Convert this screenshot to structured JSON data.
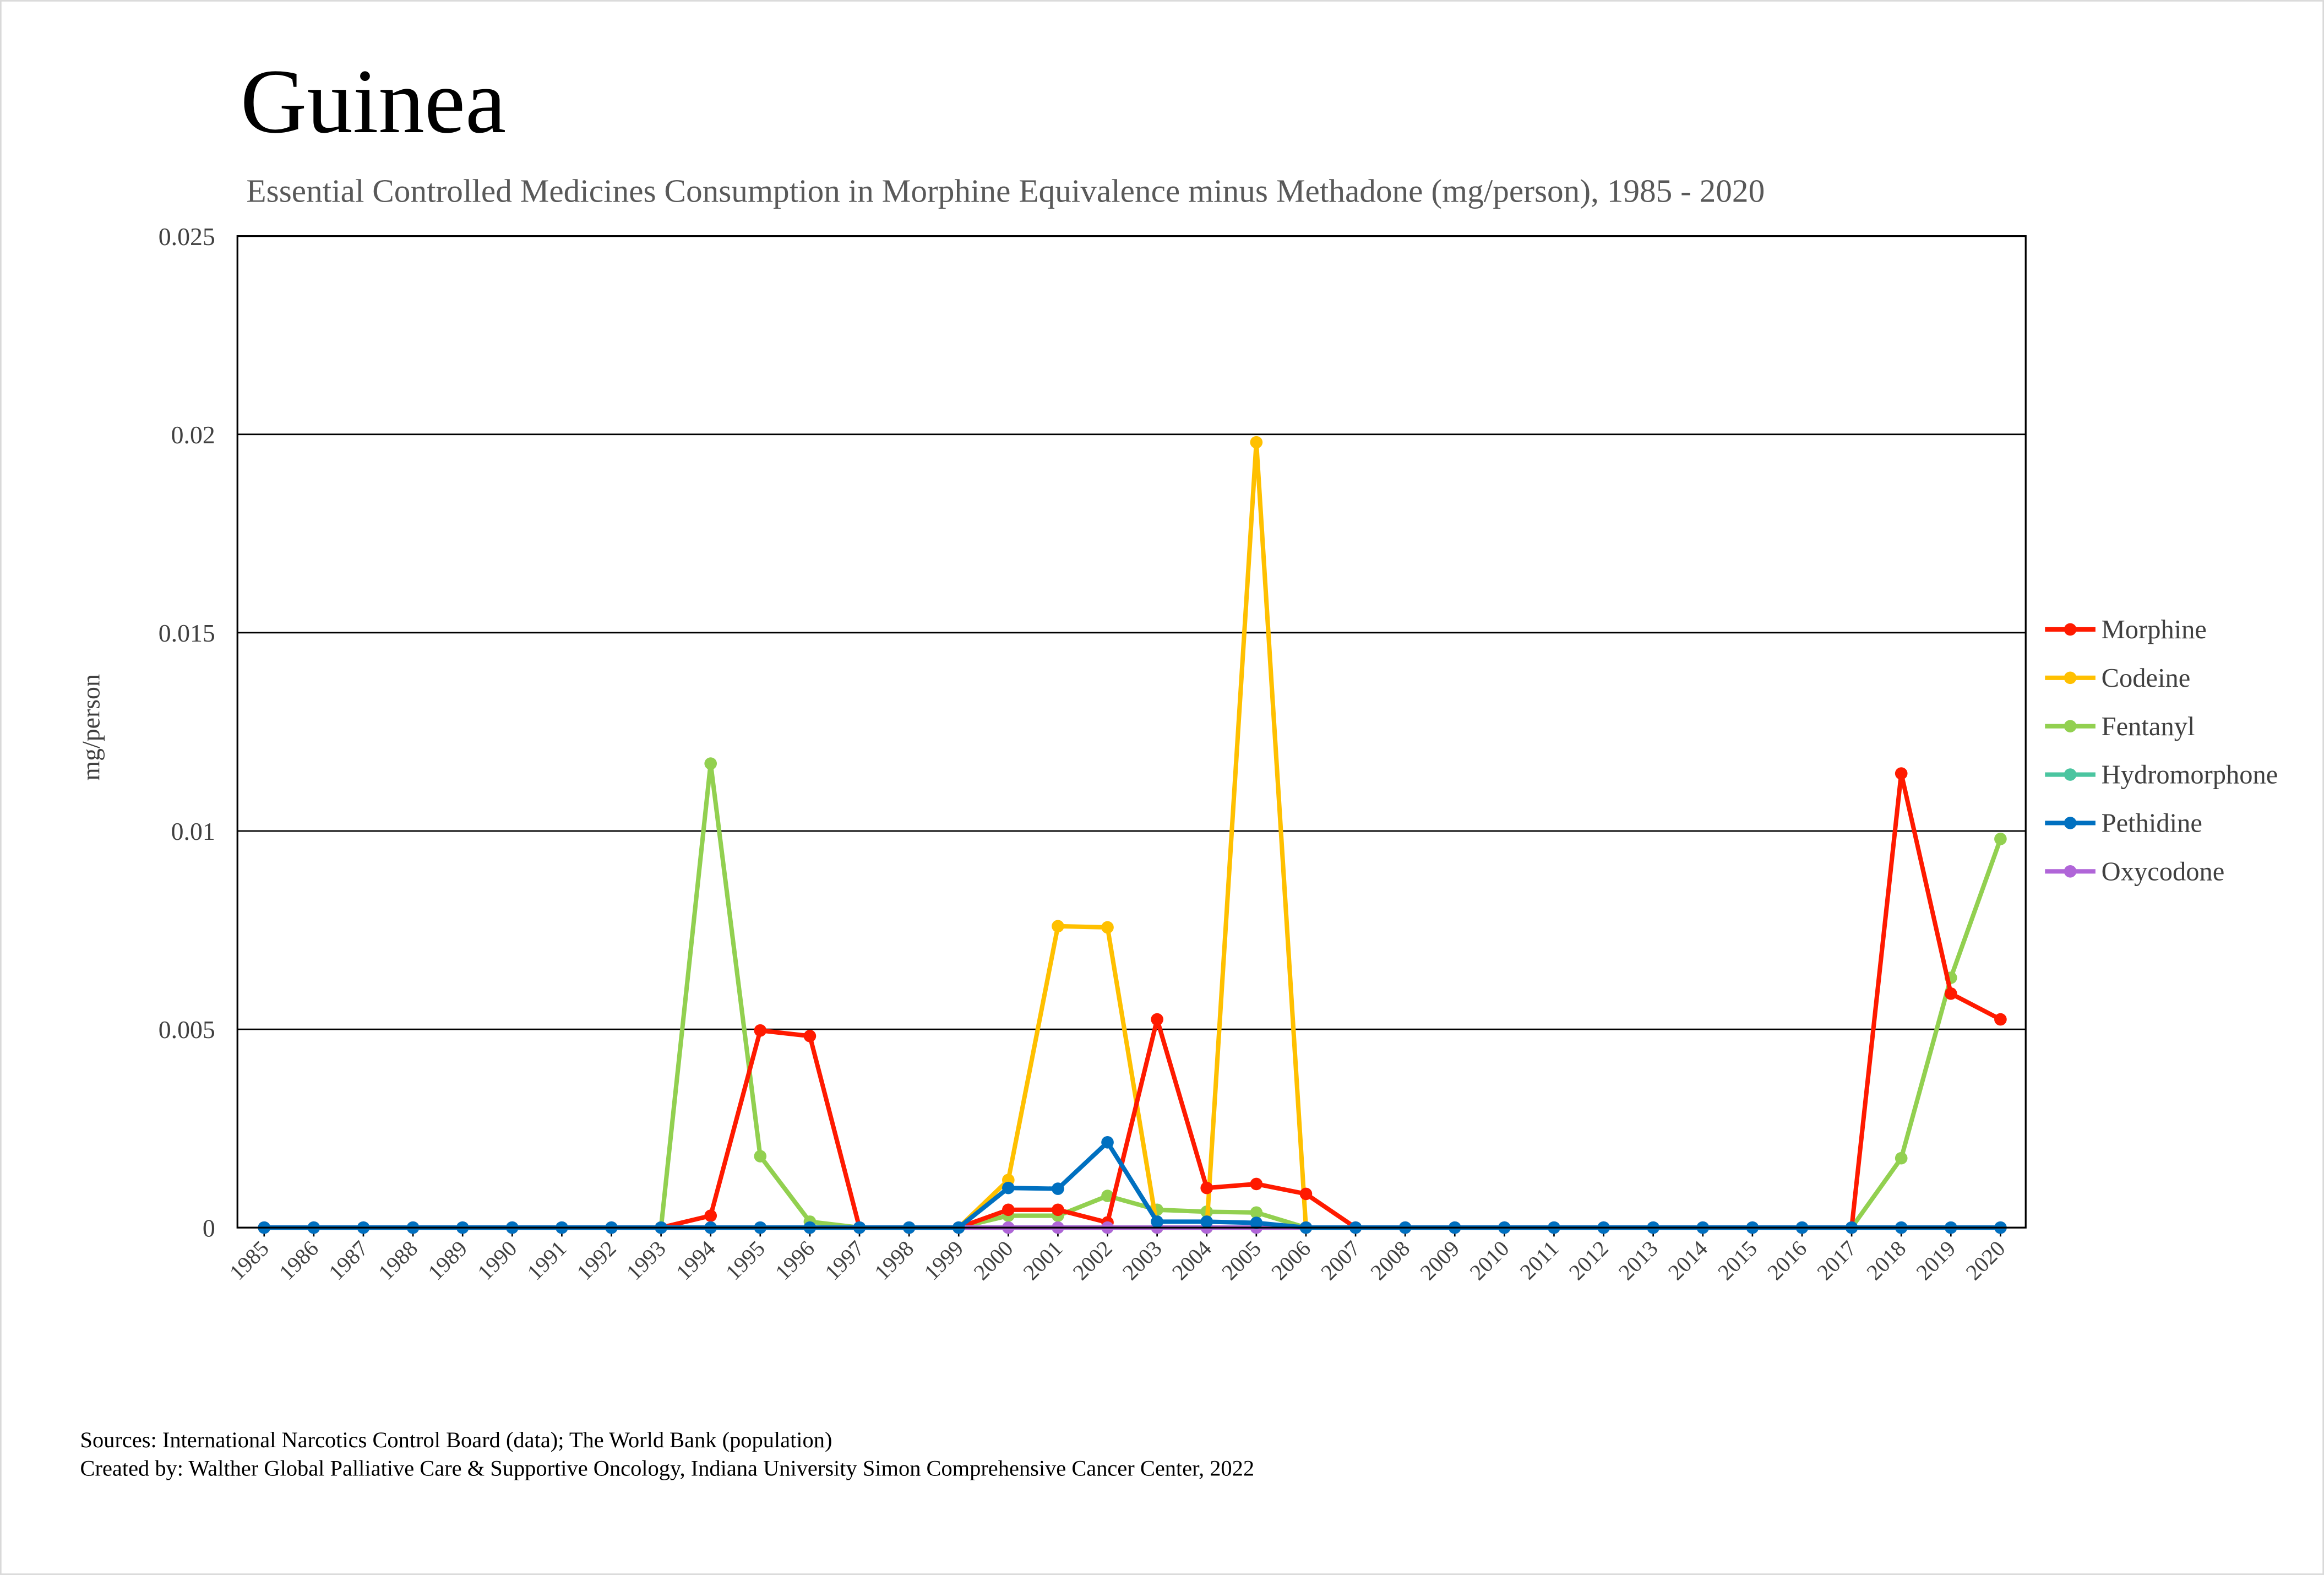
{
  "chart_data": {
    "type": "line",
    "title": "Guinea",
    "subtitle": "Essential Controlled Medicines Consumption in Morphine Equivalence minus Methadone (mg/person), 1985 - 2020",
    "xlabel": "",
    "ylabel": "mg/person",
    "ylim": [
      0,
      0.025
    ],
    "yticks": [
      "0",
      "0.005",
      "0.01",
      "0.015",
      "0.02",
      "0.025"
    ],
    "ytick_values": [
      0,
      0.005,
      0.01,
      0.015,
      0.02,
      0.025
    ],
    "grid": true,
    "legend_position": "right",
    "x": [
      "1985",
      "1986",
      "1987",
      "1988",
      "1989",
      "1990",
      "1991",
      "1992",
      "1993",
      "1994",
      "1995",
      "1996",
      "1997",
      "1998",
      "1999",
      "2000",
      "2001",
      "2002",
      "2003",
      "2004",
      "2005",
      "2006",
      "2007",
      "2008",
      "2009",
      "2010",
      "2011",
      "2012",
      "2013",
      "2014",
      "2015",
      "2016",
      "2017",
      "2018",
      "2019",
      "2020"
    ],
    "series": [
      {
        "name": "Morphine",
        "color": "#FF1A00",
        "values": [
          0,
          0,
          0,
          0,
          0,
          0,
          0,
          0,
          0,
          0.0003,
          0.00497,
          0.00483,
          0,
          0,
          0,
          0.00045,
          0.00045,
          0.00013,
          0.00525,
          0.001,
          0.0011,
          0.00085,
          0,
          0,
          0,
          0,
          0,
          0,
          0,
          0,
          0,
          0,
          0,
          0.01145,
          0.0059,
          0.00525
        ]
      },
      {
        "name": "Codeine",
        "color": "#FFC000",
        "values": [
          0,
          0,
          0,
          0,
          0,
          0,
          0,
          0,
          0,
          0,
          0,
          0,
          0,
          0,
          0,
          0.0012,
          0.0076,
          0.00757,
          0,
          0,
          0.0198,
          0,
          0,
          0,
          0,
          0,
          0,
          0,
          0,
          0,
          0,
          0,
          0,
          0,
          0,
          0
        ]
      },
      {
        "name": "Fentanyl",
        "color": "#92D050",
        "values": [
          0,
          0,
          0,
          0,
          0,
          0,
          0,
          0,
          0,
          0.0117,
          0.0018,
          0.00015,
          0,
          0,
          0,
          0.0003,
          0.0003,
          0.0008,
          0.00045,
          0.0004,
          0.00038,
          0,
          0,
          0,
          0,
          0,
          0,
          0,
          0,
          0,
          0,
          0,
          0,
          0.00175,
          0.0063,
          0.0098
        ]
      },
      {
        "name": "Hydromorphone",
        "color": "#4BC5A0",
        "values": [
          0,
          0,
          0,
          0,
          0,
          0,
          0,
          0,
          0,
          0,
          0,
          0,
          0,
          0,
          0,
          0,
          0,
          0,
          0,
          0,
          0,
          0,
          0,
          0,
          0,
          0,
          0,
          0,
          0,
          0,
          0,
          0,
          0,
          0,
          0,
          0
        ]
      },
      {
        "name": "Pethidine",
        "color": "#0070C0",
        "values": [
          0,
          0,
          0,
          0,
          0,
          0,
          0,
          0,
          0,
          0,
          0,
          0,
          0,
          0,
          0,
          0.001,
          0.00098,
          0.00215,
          0.00015,
          0.00015,
          0.00012,
          0,
          0,
          0,
          0,
          0,
          0,
          0,
          0,
          0,
          0,
          0,
          0,
          0,
          0,
          0
        ]
      },
      {
        "name": "Oxycodone",
        "color": "#B065D8",
        "values": [
          0,
          0,
          0,
          0,
          0,
          0,
          0,
          0,
          0,
          0,
          0,
          0,
          0,
          0,
          0,
          0,
          0,
          0,
          0,
          0,
          0,
          0,
          0,
          0,
          0,
          0,
          0,
          0,
          0,
          0,
          0,
          0,
          0,
          0,
          0,
          0
        ]
      }
    ]
  },
  "footer": {
    "sources": "Sources: International Narcotics Control Board (data); The World Bank (population)",
    "created_by": "Created by: Walther Global Palliative Care & Supportive Oncology, Indiana University Simon Comprehensive Cancer Center, 2022"
  }
}
